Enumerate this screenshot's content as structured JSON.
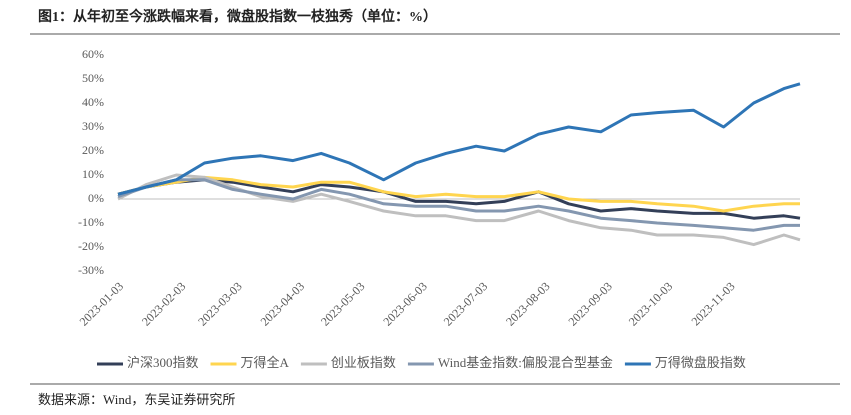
{
  "header": {
    "title": "图1：从年初至今涨跌幅来看，微盘股指数一枝独秀（单位：%）"
  },
  "chart_data": {
    "type": "line",
    "x": [
      "2023-01-03",
      "2023-01-17",
      "2023-02-01",
      "2023-02-15",
      "2023-03-01",
      "2023-03-15",
      "2023-03-31",
      "2023-04-14",
      "2023-04-28",
      "2023-05-15",
      "2023-05-31",
      "2023-06-15",
      "2023-06-30",
      "2023-07-14",
      "2023-07-31",
      "2023-08-15",
      "2023-08-31",
      "2023-09-15",
      "2023-09-28",
      "2023-10-16",
      "2023-10-31",
      "2023-11-15",
      "2023-11-30",
      "2023-12-08"
    ],
    "xlim": [
      "2023-01-03",
      "2023-12-08"
    ],
    "xticks": [
      "2023-01-03",
      "2023-02-03",
      "2023-03-03",
      "2023-04-03",
      "2023-05-03",
      "2023-06-03",
      "2023-07-03",
      "2023-08-03",
      "2023-09-03",
      "2023-10-03",
      "2023-11-03"
    ],
    "ylim": [
      -30,
      60
    ],
    "yticks": [
      {
        "value": -30,
        "label": "-30%"
      },
      {
        "value": -20,
        "label": "-20%"
      },
      {
        "value": -10,
        "label": "-10%"
      },
      {
        "value": 0,
        "label": "0%"
      },
      {
        "value": 10,
        "label": "10%"
      },
      {
        "value": 20,
        "label": "20%"
      },
      {
        "value": 30,
        "label": "30%"
      },
      {
        "value": 40,
        "label": "40%"
      },
      {
        "value": 50,
        "label": "50%"
      },
      {
        "value": 60,
        "label": "60%"
      }
    ],
    "series": [
      {
        "name": "沪深300指数",
        "color": "#333f58",
        "values": [
          2,
          5,
          7,
          8,
          7,
          5,
          3,
          6,
          5,
          3,
          -1,
          -1,
          -2,
          -1,
          3,
          -2,
          -5,
          -4,
          -5,
          -6,
          -6,
          -8,
          -7,
          -8
        ]
      },
      {
        "name": "万得全A",
        "color": "#ffd54f",
        "values": [
          2,
          5,
          7,
          9,
          8,
          6,
          5,
          7,
          7,
          3,
          1,
          2,
          1,
          1,
          3,
          0,
          -1,
          -1,
          -2,
          -3,
          -5,
          -3,
          -2,
          -2
        ]
      },
      {
        "name": "创业板指数",
        "color": "#bfbfbf",
        "values": [
          0,
          6,
          10,
          9,
          5,
          1,
          -1,
          2,
          -1,
          -5,
          -7,
          -7,
          -9,
          -9,
          -5,
          -9,
          -12,
          -13,
          -15,
          -15,
          -16,
          -19,
          -15,
          -17
        ]
      },
      {
        "name": "Wind基金指数:偏股混合型基金",
        "color": "#8497b0",
        "values": [
          1,
          5,
          8,
          8,
          4,
          2,
          0,
          4,
          2,
          -2,
          -3,
          -3,
          -5,
          -5,
          -3,
          -5,
          -8,
          -9,
          -10,
          -11,
          -12,
          -13,
          -11,
          -11
        ]
      },
      {
        "name": "万得微盘股指数",
        "color": "#2e75b6",
        "values": [
          2,
          5,
          8,
          15,
          17,
          18,
          16,
          19,
          15,
          8,
          15,
          19,
          22,
          20,
          27,
          30,
          28,
          35,
          36,
          37,
          30,
          40,
          46,
          48
        ]
      }
    ]
  },
  "footer": {
    "source": "数据来源：Wind，东吴证券研究所"
  }
}
